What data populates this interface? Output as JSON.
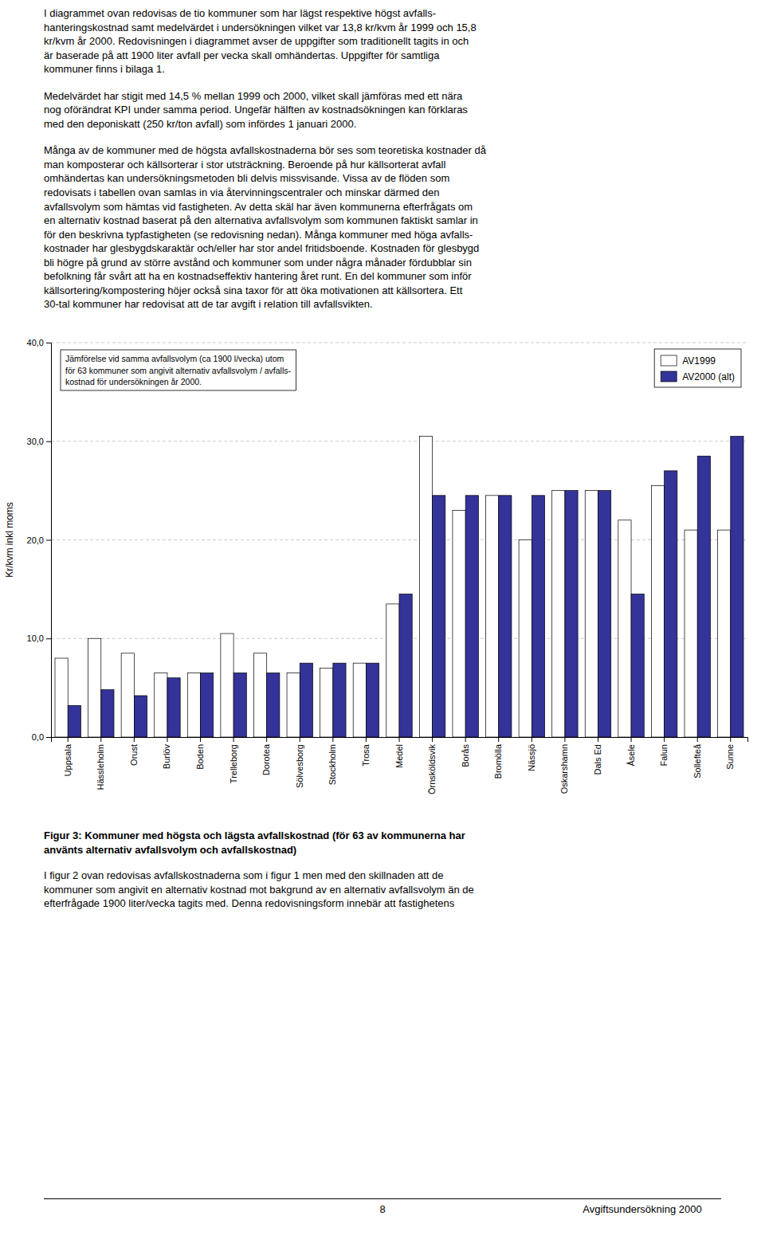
{
  "chart_data": {
    "type": "bar",
    "categories": [
      "Uppsala",
      "Hässleholm",
      "Orust",
      "Burlöv",
      "Boden",
      "Trelleborg",
      "Dorotea",
      "Sölvesborg",
      "Stockholm",
      "Trosa",
      "Medel",
      "Örnsköldsvik",
      "Borås",
      "Bromölla",
      "Nässjö",
      "Oskarshamn",
      "Dals Ed",
      "Åsele",
      "Falun",
      "Sollefteå",
      "Sunne"
    ],
    "series": [
      {
        "name": "AV1999",
        "color": "#ffffff",
        "values": [
          8.0,
          10.0,
          8.5,
          6.5,
          6.5,
          10.5,
          8.5,
          6.5,
          7.0,
          7.5,
          13.5,
          30.5,
          23.0,
          24.5,
          20.0,
          25.0,
          25.0,
          22.0,
          25.5,
          21.0,
          21.0
        ]
      },
      {
        "name": "AV2000 (alt)",
        "color": "#333399",
        "values": [
          3.2,
          4.8,
          4.2,
          6.0,
          6.5,
          6.5,
          6.5,
          7.5,
          7.5,
          7.5,
          14.5,
          24.5,
          24.5,
          24.5,
          24.5,
          25.0,
          25.0,
          14.5,
          27.0,
          28.5,
          30.5
        ]
      }
    ],
    "ylabel": "Kr/kvm inkl moms",
    "ylim": [
      0,
      40
    ],
    "yticks": [
      {
        "value": 0,
        "label": "0,0"
      },
      {
        "value": 10,
        "label": "10,0"
      },
      {
        "value": 20,
        "label": "20,0"
      },
      {
        "value": 30,
        "label": "30,0"
      },
      {
        "value": 40,
        "label": "40,0"
      }
    ],
    "annotations": [
      "Jämförelse vid samma avfallsvolym (ca 1900 l/vecka) utom\nför 63 kommuner som angivit alternativ avfallsvolym / avfalls-\nkostnad för undersökningen år 2000."
    ],
    "grid": true,
    "legend": "upper right"
  },
  "text_above": [
    "I diagrammet ovan redovisas de tio kommuner som har lägst respektive högst avfalls-\nhanteringskostnad samt medelvärdet i undersökningen vilket var 13,8 kr/kvm år 1999 och 15,8\nkr/kvm år 2000. Redovisningen i diagrammet avser de uppgifter som traditionellt tagits in och\när baserade på att 1900 liter avfall per vecka skall omhändertas. Uppgifter för samtliga\nkommuner finns i bilaga 1.",
    "Medelvärdet har stigit med 14,5 % mellan 1999 och 2000, vilket skall jämföras med ett nära\nnog oförändrat KPI under samma period. Ungefär hälften av kostnadsökningen kan förklaras\nmed den deponiskatt (250 kr/ton avfall) som infördes 1 januari 2000.",
    "Många av de kommuner med de högsta avfallskostnaderna bör ses som teoretiska kostnader då\nman komposterar och källsorterar i stor utsträckning. Beroende på hur källsorterat avfall\nomhändertas kan undersökningsmetoden bli delvis missvisande. Vissa av de flöden som\nredovisats i tabellen ovan samlas in via återvinningscentraler och minskar därmed den\navfallsvolym som hämtas vid fastigheten. Av detta skäl har även kommunerna efterfrågats om\nen alternativ kostnad baserat på den alternativa avfallsvolym som kommunen faktiskt samlar in\nför den beskrivna typfastigheten (se redovisning nedan). Många kommuner med höga avfalls-\nkostnader har glesbygdskaraktär och/eller har stor andel fritidsboende. Kostnaden för glesbygd\nbli högre på grund av större avstånd och kommuner som under några månader fördubblar sin\nbefolkning får svårt att ha en kostnadseffektiv hantering året runt. En del kommuner som inför\nkällsortering/kompostering höjer också sina taxor för att öka motivationen att källsortera. Ett\n30-tal kommuner har redovisat att de tar avgift i relation till avfallsvikten."
  ],
  "caption": "Figur 3: Kommuner med högsta och lägsta avfallskostnad (för 63 av kommunerna har\nanvänts alternativ avfallsvolym och avfallskostnad)",
  "text_below": [
    "I figur 2 ovan redovisas avfallskostnaderna som i figur 1 men med den skillnaden att de\nkommuner som angivit en alternativ kostnad mot bakgrund av en alternativ avfallsvolym än de\nefterfrågade 1900 liter/vecka tagits med. Denna redovisningsform innebär att fastighetens"
  ],
  "footer_num": "8",
  "footer_text": "Avgiftsundersökning 2000"
}
